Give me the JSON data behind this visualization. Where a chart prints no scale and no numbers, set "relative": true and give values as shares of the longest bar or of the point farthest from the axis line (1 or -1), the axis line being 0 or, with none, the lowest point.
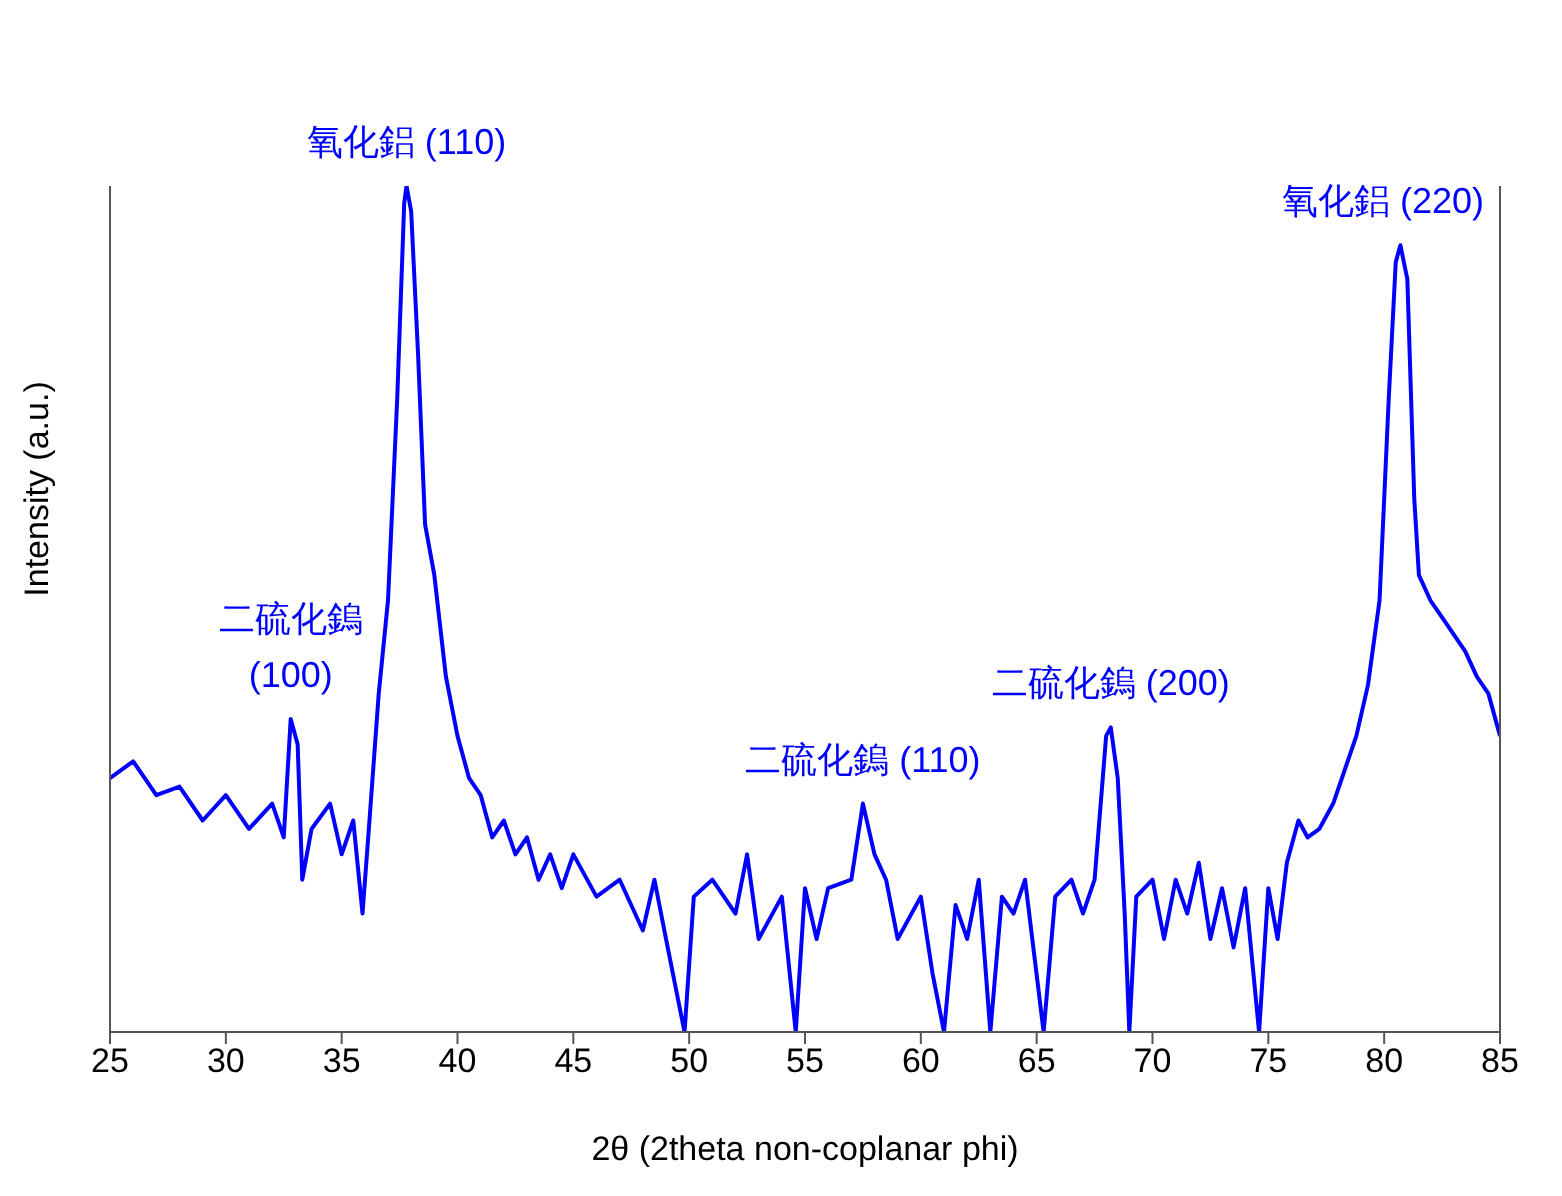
{
  "chart_data": {
    "type": "line",
    "relative": true,
    "xlabel": "2θ (2theta non-coplanar phi)",
    "ylabel": "Intensity (a.u.)",
    "xlim": [
      25,
      85
    ],
    "xticks": [
      25,
      30,
      35,
      40,
      45,
      50,
      55,
      60,
      65,
      70,
      75,
      80,
      85
    ],
    "grid": false,
    "legend": false,
    "marker": "none",
    "line_style": "solid",
    "x": [
      25,
      26,
      27,
      28,
      29,
      30,
      31,
      32,
      32.5,
      32.8,
      33.1,
      33.3,
      33.7,
      34.5,
      35,
      35.5,
      35.9,
      36.2,
      36.6,
      37,
      37.4,
      37.7,
      37.8,
      38,
      38.3,
      38.6,
      39,
      39.5,
      40,
      40.5,
      41,
      41.5,
      42,
      42.5,
      43,
      43.5,
      44,
      44.5,
      45,
      46,
      47,
      48,
      48.5,
      49,
      49.8,
      50.2,
      51,
      52,
      52.5,
      53,
      54,
      54.6,
      55,
      55.5,
      56,
      57,
      57.5,
      58,
      58.5,
      59,
      60,
      60.5,
      61,
      61.5,
      62,
      62.5,
      63,
      63.5,
      64,
      64.5,
      65.3,
      65.8,
      66.5,
      67,
      67.5,
      68,
      68.2,
      68.5,
      68.8,
      69,
      69.3,
      70,
      70.5,
      71,
      71.5,
      72,
      72.5,
      73,
      73.5,
      74,
      74.6,
      75,
      75.4,
      75.8,
      76.3,
      76.7,
      77.2,
      77.8,
      78.3,
      78.8,
      79.3,
      79.8,
      80.2,
      80.5,
      80.7,
      81,
      81.3,
      81.5,
      82,
      82.5,
      83,
      83.5,
      84,
      84.5,
      85
    ],
    "series": [
      {
        "color": "#0000ff",
        "values": [
          0.3,
          0.32,
          0.28,
          0.29,
          0.25,
          0.28,
          0.24,
          0.27,
          0.23,
          0.37,
          0.34,
          0.18,
          0.24,
          0.27,
          0.21,
          0.25,
          0.14,
          0.25,
          0.4,
          0.51,
          0.75,
          0.98,
          1,
          0.97,
          0.8,
          0.6,
          0.54,
          0.42,
          0.35,
          0.3,
          0.28,
          0.23,
          0.25,
          0.21,
          0.23,
          0.18,
          0.21,
          0.17,
          0.21,
          0.16,
          0.18,
          0.12,
          0.18,
          0.11,
          0,
          0.16,
          0.18,
          0.14,
          0.21,
          0.11,
          0.16,
          0,
          0.17,
          0.11,
          0.17,
          0.18,
          0.27,
          0.21,
          0.18,
          0.11,
          0.16,
          0.07,
          0,
          0.15,
          0.11,
          0.18,
          0,
          0.16,
          0.14,
          0.18,
          0,
          0.16,
          0.18,
          0.14,
          0.18,
          0.35,
          0.36,
          0.3,
          0.14,
          0,
          0.16,
          0.18,
          0.11,
          0.18,
          0.14,
          0.2,
          0.11,
          0.17,
          0.1,
          0.17,
          0,
          0.17,
          0.11,
          0.2,
          0.25,
          0.23,
          0.24,
          0.27,
          0.31,
          0.35,
          0.41,
          0.51,
          0.75,
          0.91,
          0.93,
          0.89,
          0.63,
          0.54,
          0.51,
          0.49,
          0.47,
          0.45,
          0.42,
          0.4,
          0.35
        ]
      }
    ],
    "annotations": [
      {
        "text": "二硫化鎢\n(100)",
        "x": 32.8,
        "y": 0.37
      },
      {
        "text": "氧化鋁 (110)",
        "x": 37.8,
        "y": 1
      },
      {
        "text": "二硫化鎢 (110)",
        "x": 57.5,
        "y": 0.27
      },
      {
        "text": "二硫化鎢 (200)",
        "x": 68.2,
        "y": 0.36
      },
      {
        "text": "氧化鋁 (220)",
        "x": 80.7,
        "y": 0.93
      }
    ]
  }
}
